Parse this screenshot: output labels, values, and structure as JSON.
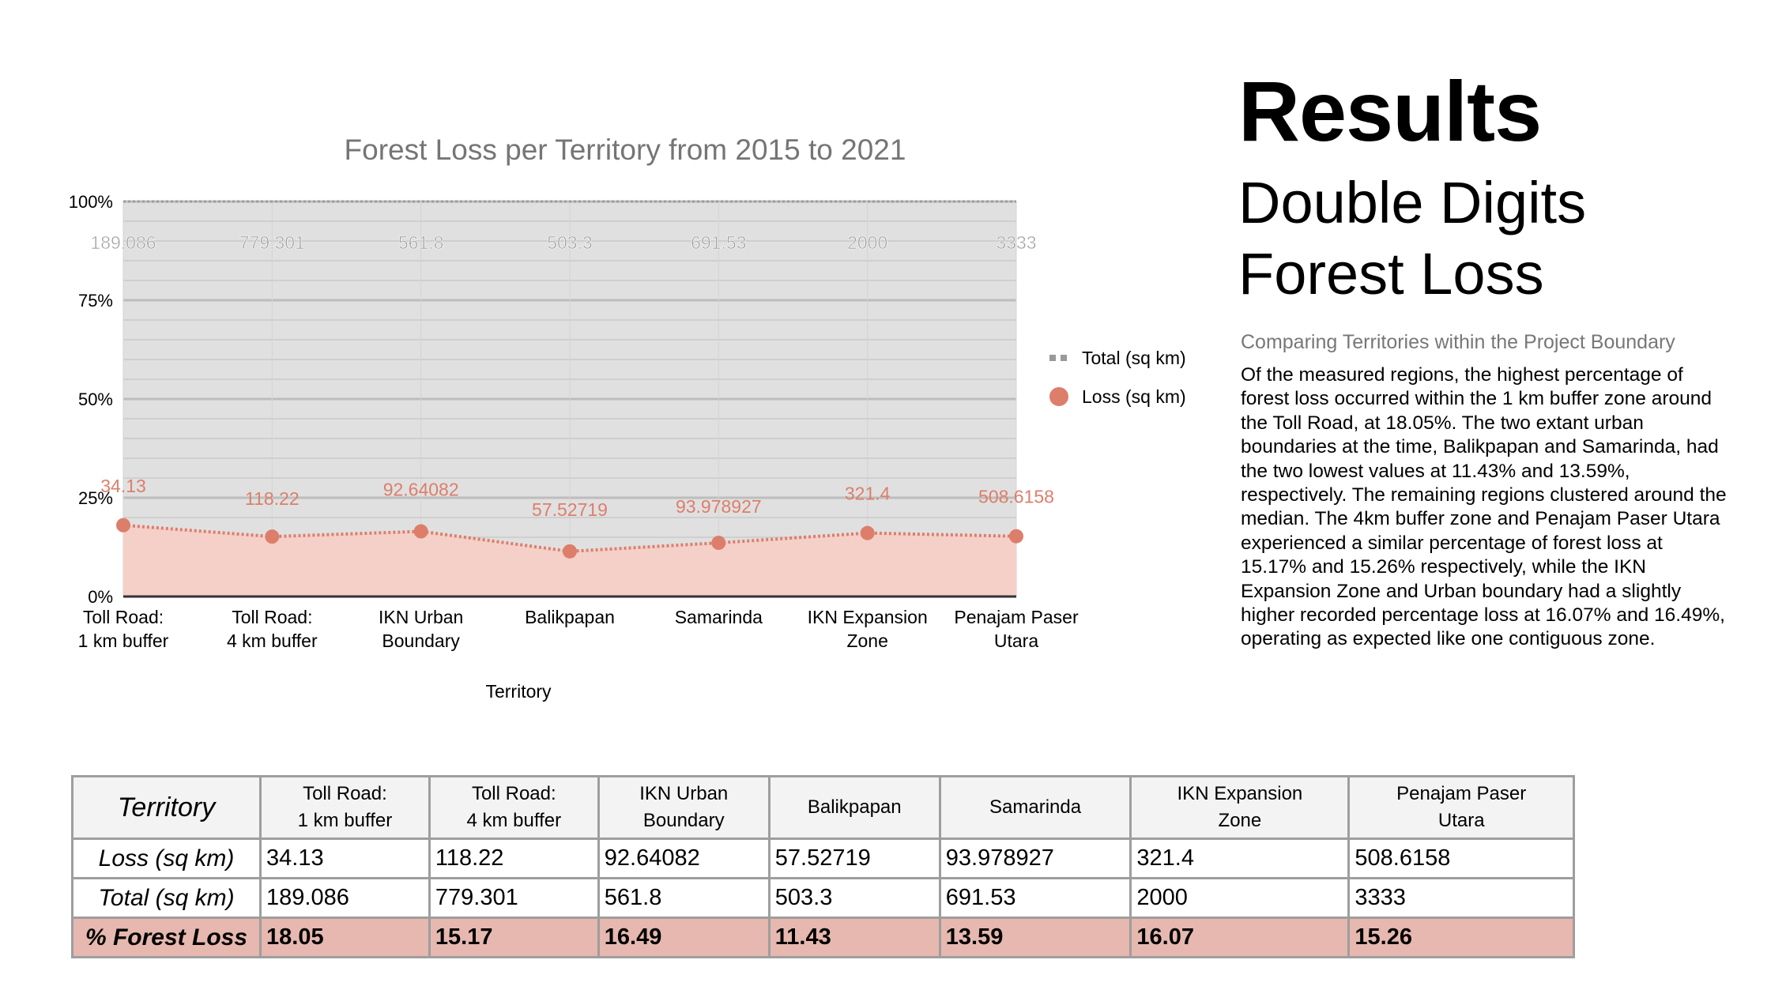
{
  "heading": {
    "title": "Results",
    "line1": "Double Digits",
    "line2": "Forest Loss"
  },
  "subtitle": "Comparing Territories within the Project Boundary",
  "paragraph": "Of the measured regions, the highest percentage of forest loss occurred within the 1 km buffer zone around the Toll Road, at 18.05%. The two extant urban boundaries at the time, Balikpapan and Samarinda, had the two lowest values at 11.43% and 13.59%, respectively. The remaining regions clustered around the median. The 4km buffer zone and Penajam Paser Utara experienced a similar percentage of forest loss at 15.17% and 15.26% respectively, while the IKN Expansion Zone and Urban boundary had a slightly higher recorded percentage loss at 16.07% and 16.49%, operating as expected like one contiguous zone.",
  "chart_data": {
    "type": "area",
    "stacked_percent": true,
    "title": "Forest Loss per Territory from 2015 to 2021",
    "xlabel": "Territory",
    "ylabel": "",
    "ylim": [
      0,
      100
    ],
    "yticks": [
      "0%",
      "25%",
      "50%",
      "75%",
      "100%"
    ],
    "categories": [
      [
        "Toll Road:",
        "1 km buffer"
      ],
      [
        "Toll Road:",
        "4 km buffer"
      ],
      [
        "IKN Urban",
        "Boundary"
      ],
      [
        "Balikpapan",
        ""
      ],
      [
        "Samarinda",
        ""
      ],
      [
        "IKN Expansion",
        "Zone"
      ],
      [
        "Penajam Paser",
        "Utara"
      ]
    ],
    "series": [
      {
        "name": "Total (sq km)",
        "color": "#999999",
        "percent": [
          100,
          100,
          100,
          100,
          100,
          100,
          100
        ],
        "labels": [
          "189.086",
          "779.301",
          "561.8",
          "503.3",
          "691.53",
          "2000",
          "3333"
        ]
      },
      {
        "name": "Loss (sq km)",
        "color": "#dd7e6b",
        "percent": [
          18.05,
          15.17,
          16.49,
          11.43,
          13.59,
          16.07,
          15.26
        ],
        "labels": [
          "34.13",
          "118.22",
          "92.64082",
          "57.52719",
          "93.978927",
          "321.4",
          "508.6158"
        ]
      }
    ],
    "legend": "right"
  },
  "table": {
    "header": "Territory",
    "columns": [
      [
        "Toll Road:",
        "1 km buffer"
      ],
      [
        "Toll Road:",
        "4 km buffer"
      ],
      [
        "IKN Urban",
        "Boundary"
      ],
      [
        "Balikpapan",
        ""
      ],
      [
        "Samarinda",
        ""
      ],
      [
        "IKN Expansion",
        "Zone"
      ],
      [
        "Penajam Paser",
        "Utara"
      ]
    ],
    "rows": [
      {
        "label": "Loss (sq km)",
        "values": [
          "34.13",
          "118.22",
          "92.64082",
          "57.52719",
          "93.978927",
          "321.4",
          "508.6158"
        ]
      },
      {
        "label": "Total (sq km)",
        "values": [
          "189.086",
          "779.301",
          "561.8",
          "503.3",
          "691.53",
          "2000",
          "3333"
        ]
      },
      {
        "label": "% Forest Loss",
        "values": [
          "18.05",
          "15.17",
          "16.49",
          "11.43",
          "13.59",
          "16.07",
          "15.26"
        ]
      }
    ]
  }
}
